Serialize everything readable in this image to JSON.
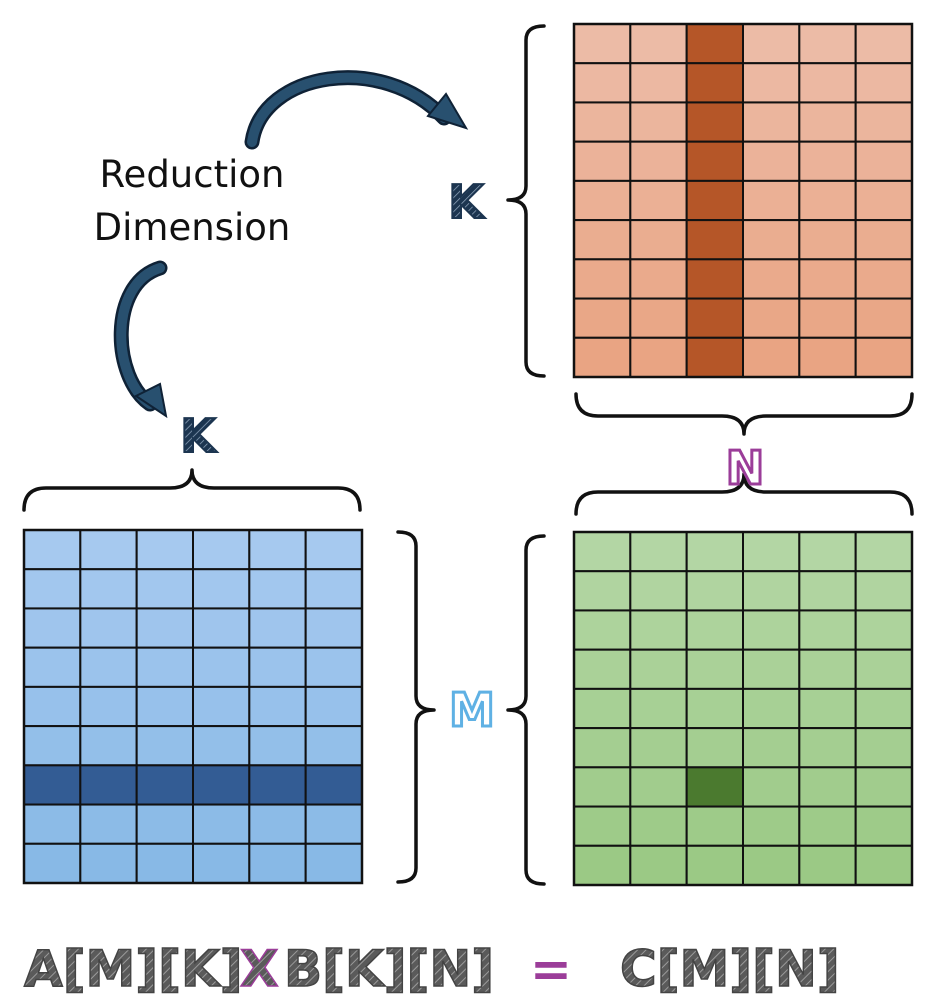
{
  "annotation": {
    "line1": "Reduction",
    "line2": "Dimension"
  },
  "labels": {
    "k_top": "K",
    "k_left": "K",
    "n": "N",
    "m": "M"
  },
  "matrix_a": {
    "rows": 9,
    "cols": 6,
    "highlight_row": 6,
    "top_color": "#a6c9ef",
    "bottom_color": "#88b9e6",
    "highlight_color": "#335c94"
  },
  "matrix_b": {
    "rows": 9,
    "cols": 6,
    "highlight_col": 2,
    "top_color": "#ecbba6",
    "bottom_color": "#e9a483",
    "highlight_color": "#b55628"
  },
  "matrix_c": {
    "rows": 9,
    "cols": 6,
    "highlight_row": 6,
    "highlight_col": 2,
    "top_color": "#b3d6a4",
    "bottom_color": "#9bc985",
    "highlight_color": "#4b7a2f"
  },
  "colors": {
    "k": "#1c3550",
    "n": "#9b3d99",
    "m": "#5fb1e4",
    "formula": "#555555",
    "op": "#9b3d99",
    "arrow": "#1f4060"
  },
  "formula": {
    "lhs_a": "A[M][K]",
    "times": "X",
    "lhs_b": "B[K][N]",
    "equals": "=",
    "rhs": "C[M][N]"
  }
}
